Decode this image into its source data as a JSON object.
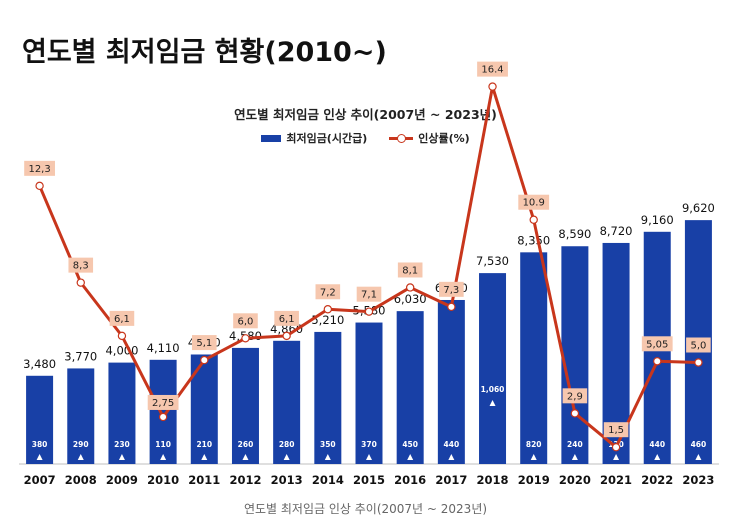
{
  "page_title": "연도별 최저임금 현황(2010~)",
  "caption": "연도별 최저임금 인상 추이(2007년 ~ 2023년)",
  "colors": {
    "bar": "#1840A6",
    "line": "#C8361C",
    "label_box": "#F6C7AE",
    "increase_text": "#ffffff"
  },
  "chart_data": {
    "type": "bar",
    "title": "연도별 최저임금 인상 추이(2007년 ~ 2023년)",
    "xlabel": "",
    "ylabel": "",
    "categories": [
      "2007",
      "2008",
      "2009",
      "2010",
      "2011",
      "2012",
      "2013",
      "2014",
      "2015",
      "2016",
      "2017",
      "2018",
      "2019",
      "2020",
      "2021",
      "2022",
      "2023"
    ],
    "series": [
      {
        "name": "최저임금(시간급)",
        "type": "bar",
        "values": [
          3480,
          3770,
          4000,
          4110,
          4320,
          4580,
          4860,
          5210,
          5580,
          6030,
          6470,
          7530,
          8350,
          8590,
          8720,
          9160,
          9620
        ],
        "labels": [
          "3,480",
          "3,770",
          "4,000",
          "4,110",
          "4,320",
          "4,580",
          "4,860",
          "5,210",
          "5,580",
          "6,030",
          "6,470",
          "7,530",
          "8,350",
          "8,590",
          "8,720",
          "9,160",
          "9,620"
        ]
      },
      {
        "name": "인상률(%)",
        "type": "line",
        "values": [
          12.3,
          8.3,
          6.1,
          2.75,
          5.1,
          6.0,
          6.1,
          7.2,
          7.1,
          8.1,
          7.3,
          16.4,
          10.9,
          2.9,
          1.5,
          5.05,
          5.0
        ],
        "labels": [
          "12,3",
          "8,3",
          "6,1",
          "2,75",
          "5,1",
          "6,0",
          "6,1",
          "7,2",
          "7,1",
          "8,1",
          "7,3",
          "16.4",
          "10.9",
          "2,9",
          "1,5",
          "5,05",
          "5,0"
        ]
      }
    ],
    "increase_amounts": [
      "380",
      "290",
      "230",
      "110",
      "210",
      "260",
      "280",
      "350",
      "370",
      "450",
      "440",
      "1,060",
      "820",
      "240",
      "130",
      "440",
      "460"
    ],
    "legend": "top-center",
    "grid": false,
    "ylim": [
      0,
      10000
    ]
  }
}
